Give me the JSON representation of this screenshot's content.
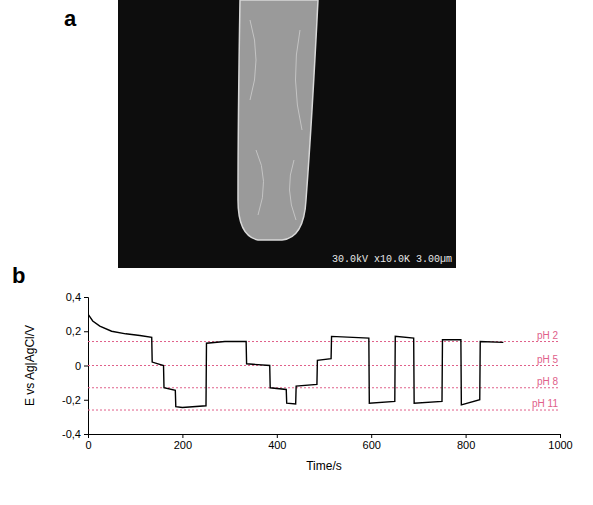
{
  "figure": {
    "panel_labels": [
      "a",
      "b"
    ],
    "sem_caption": "30.0kV x10.0K 3.00µm"
  },
  "chart_data": {
    "type": "line",
    "x_label": "Time/s",
    "y_label": "E vs Ag|AgCl/V",
    "x": [
      0,
      10,
      25,
      50,
      80,
      110,
      135,
      136,
      160,
      161,
      185,
      186,
      200,
      250,
      251,
      290,
      335,
      336,
      385,
      386,
      420,
      421,
      440,
      441,
      485,
      486,
      515,
      516,
      595,
      596,
      650,
      651,
      690,
      691,
      750,
      751,
      790,
      791,
      830,
      831,
      880
    ],
    "series": [
      {
        "name": "E",
        "color": "#000000",
        "values": [
          0.3,
          0.26,
          0.23,
          0.2,
          0.185,
          0.175,
          0.165,
          0.02,
          0.0,
          -0.13,
          -0.145,
          -0.24,
          -0.245,
          -0.235,
          0.13,
          0.14,
          0.14,
          0.01,
          0.0,
          -0.13,
          -0.14,
          -0.22,
          -0.225,
          -0.12,
          -0.11,
          0.03,
          0.04,
          0.17,
          0.16,
          -0.22,
          -0.21,
          0.17,
          0.16,
          -0.22,
          -0.21,
          0.15,
          0.15,
          -0.23,
          -0.2,
          0.14,
          0.135
        ]
      }
    ],
    "xlim": [
      0,
      1000
    ],
    "xticks": [
      0,
      200,
      400,
      600,
      800,
      1000
    ],
    "ylim": [
      -0.4,
      0.4
    ],
    "yticks": [
      {
        "value": -0.4,
        "label": "-0,4"
      },
      {
        "value": -0.2,
        "label": "-0,2"
      },
      0,
      {
        "value": 0.2,
        "label": "0,2"
      },
      {
        "value": 0.4,
        "label": "0,4"
      }
    ],
    "annotations": [
      {
        "y": 0.14,
        "label": "pH 2"
      },
      {
        "y": 0.0,
        "label": "pH 5"
      },
      {
        "y": -0.13,
        "label": "pH 8"
      },
      {
        "y": -0.26,
        "label": "pH 11"
      }
    ],
    "grid": false
  }
}
